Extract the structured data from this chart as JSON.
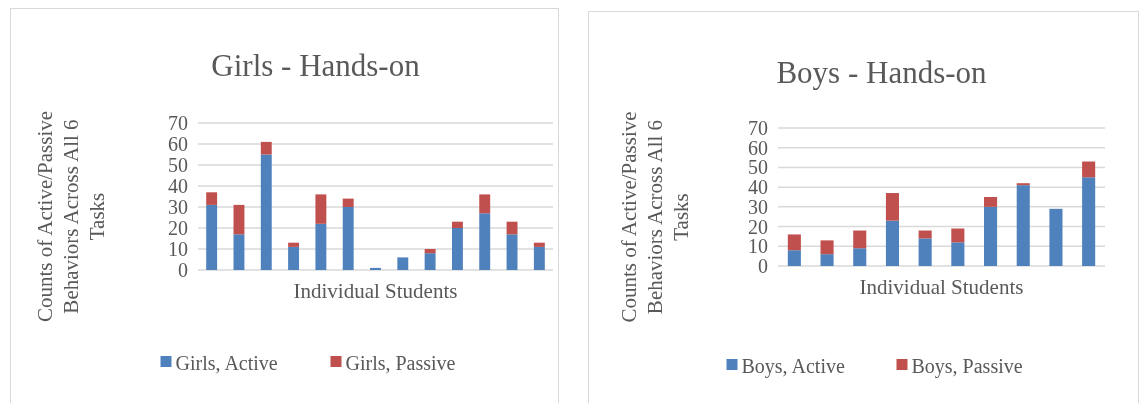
{
  "chart_data": [
    {
      "type": "bar",
      "title": "Girls - Hands-on",
      "xlabel": "Individual Students",
      "ylabel": "Counts of Active/Passive Behaviors Across All 6 Tasks",
      "categories": [
        null,
        null,
        null,
        null,
        null,
        null,
        null,
        null,
        null,
        null,
        null,
        null,
        null
      ],
      "stacked": true,
      "series": [
        {
          "name": "Girls, Active",
          "color": "#4f81bd",
          "values": [
            31,
            17,
            55,
            11,
            22,
            30,
            1,
            6,
            8,
            20,
            27,
            17,
            11
          ]
        },
        {
          "name": "Girls, Passive",
          "color": "#c0504d",
          "values": [
            6,
            14,
            6,
            2,
            14,
            4,
            0,
            0,
            2,
            3,
            9,
            6,
            2
          ]
        }
      ],
      "ylim": [
        0,
        70
      ],
      "yticks": [
        0,
        10,
        20,
        30,
        40,
        50,
        60,
        70
      ],
      "grid": "y",
      "legend": "bottom"
    },
    {
      "type": "bar",
      "title": "Boys - Hands-on",
      "xlabel": "Individual Students",
      "ylabel": "Counts of Active/Passive Behaviors Across All 6 Tasks",
      "categories": [
        null,
        null,
        null,
        null,
        null,
        null,
        null,
        null,
        null,
        null
      ],
      "stacked": true,
      "series": [
        {
          "name": "Boys, Active",
          "color": "#4f81bd",
          "values": [
            8,
            6,
            9,
            23,
            14,
            12,
            30,
            41,
            29,
            45
          ]
        },
        {
          "name": "Boys, Passive",
          "color": "#c0504d",
          "values": [
            8,
            7,
            9,
            14,
            4,
            7,
            5,
            1,
            0,
            8
          ]
        }
      ],
      "ylim": [
        0,
        70
      ],
      "yticks": [
        0,
        10,
        20,
        30,
        40,
        50,
        60,
        70
      ],
      "grid": "y",
      "legend": "bottom"
    }
  ]
}
